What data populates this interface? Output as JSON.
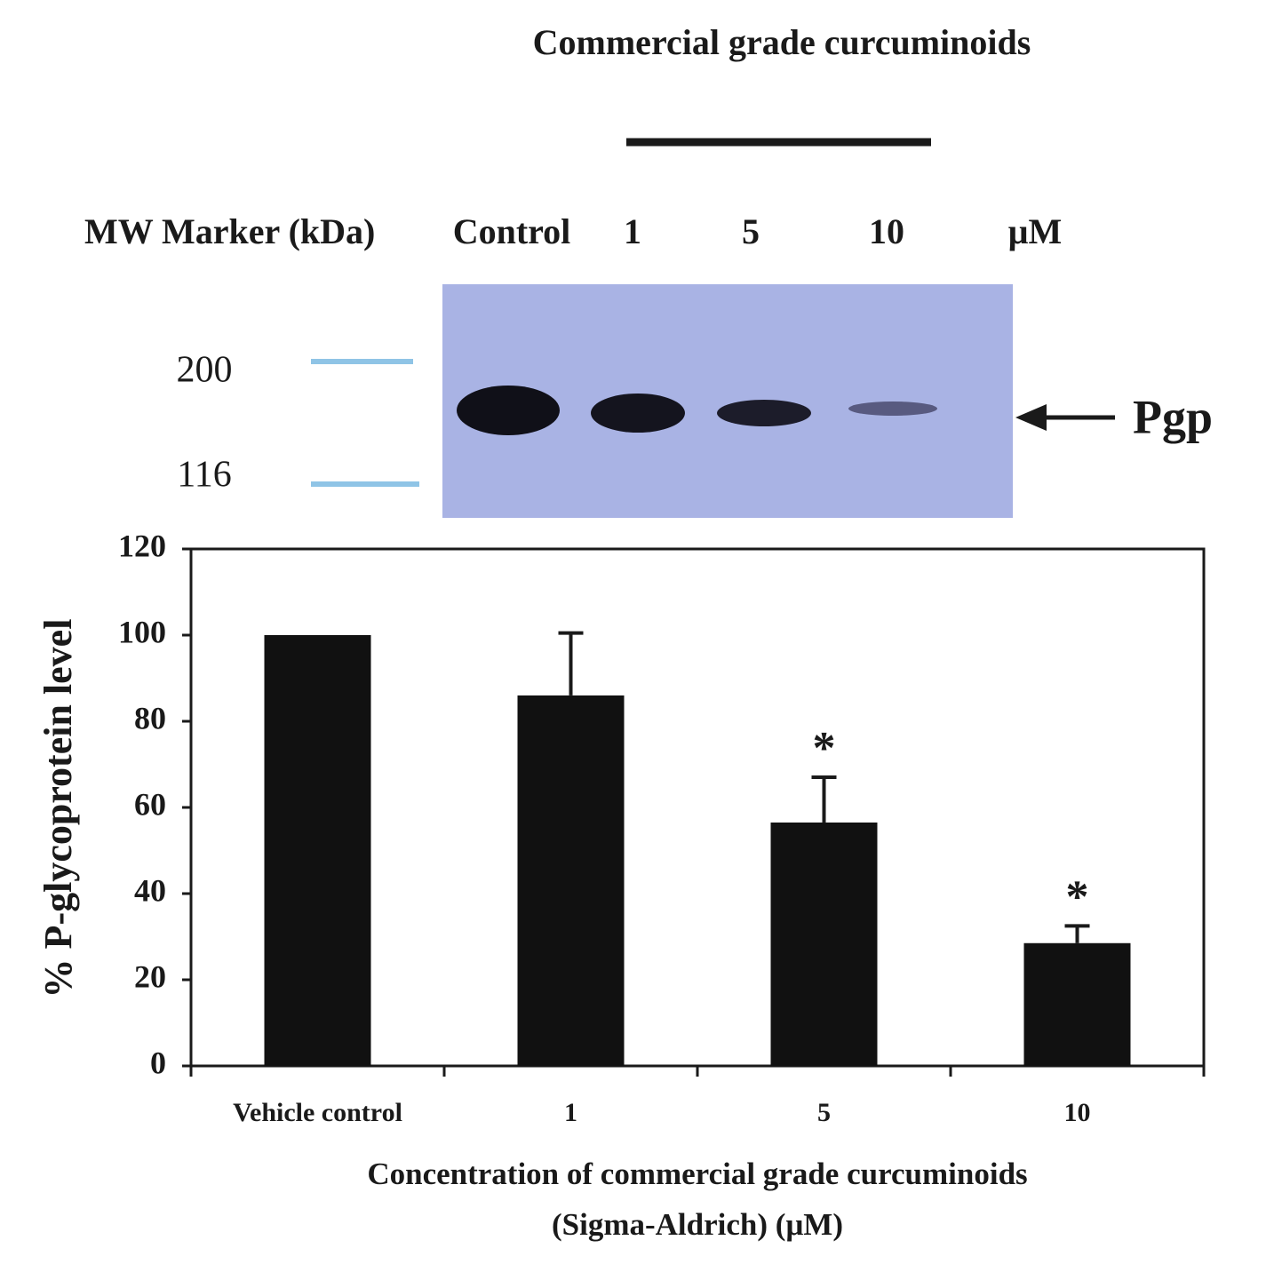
{
  "blot": {
    "title": "Commercial grade curcuminoids",
    "header": [
      "MW Marker (kDa)",
      "Control",
      "1",
      "5",
      "10",
      "μM"
    ],
    "markers": [
      "200",
      "116"
    ],
    "band_label": "Pgp"
  },
  "chart_data": {
    "type": "bar",
    "ylabel": "% P-glycoprotein level",
    "xlabel": [
      "Concentration of commercial grade curcuminoids",
      "(Sigma-Aldrich) (μM)"
    ],
    "categories": [
      "Vehicle control",
      "1",
      "5",
      "10"
    ],
    "values": [
      100,
      86,
      56.5,
      28.5
    ],
    "errors": [
      0,
      14.5,
      10.5,
      4
    ],
    "significance": [
      null,
      null,
      "*",
      "*"
    ],
    "color": "#111111",
    "ylim": [
      0,
      120
    ],
    "yticks": [
      0,
      20,
      40,
      60,
      80,
      100,
      120
    ]
  }
}
